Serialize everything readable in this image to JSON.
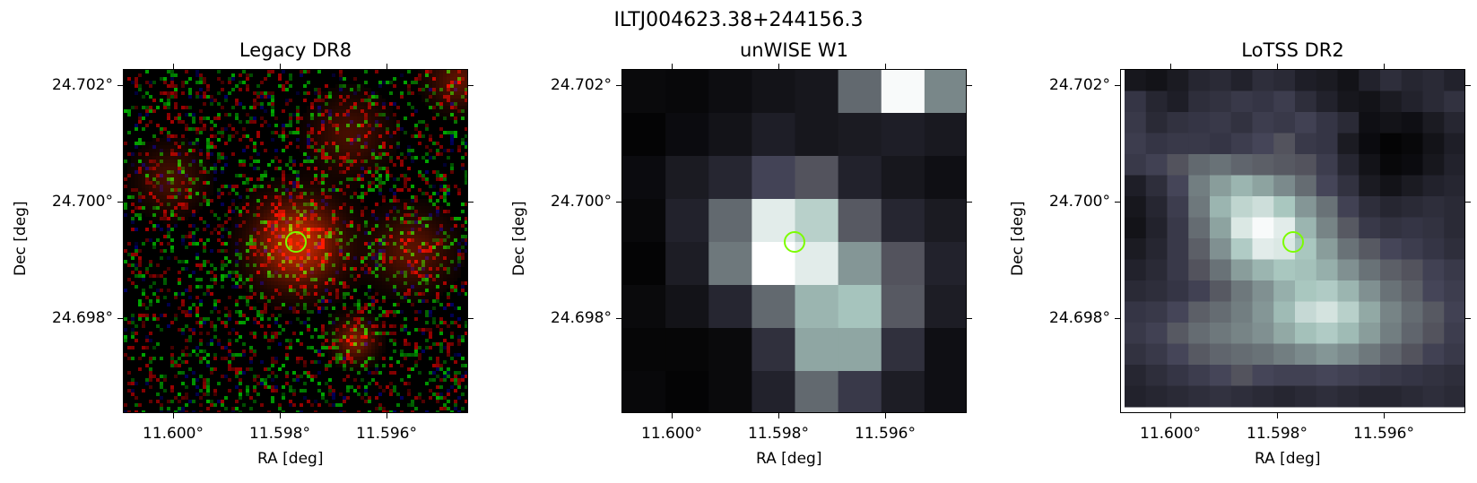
{
  "figure": {
    "title": "ILTJ004623.38+244156.3",
    "marker_color": "#7CFC00"
  },
  "panels": [
    {
      "title": "Legacy DR8",
      "xlabel": "RA [deg]",
      "ylabel": "Dec [deg]",
      "xticks": [
        "11.600°",
        "11.598°",
        "11.596°"
      ],
      "yticks": [
        "24.702°",
        "24.700°",
        "24.698°"
      ],
      "colormap": "rgb-composite"
    },
    {
      "title": "unWISE W1",
      "xlabel": "RA [deg]",
      "ylabel": "Dec [deg]",
      "xticks": [
        "11.600°",
        "11.598°",
        "11.596°"
      ],
      "yticks": [
        "24.702°",
        "24.700°",
        "24.698°"
      ],
      "colormap": "bone"
    },
    {
      "title": "LoTSS DR2",
      "xlabel": "RA [deg]",
      "ylabel": "Dec [deg]",
      "xticks": [
        "11.600°",
        "11.598°",
        "11.596°"
      ],
      "yticks": [
        "24.702°",
        "24.700°",
        "24.698°"
      ],
      "colormap": "bone"
    }
  ],
  "unwise_grid": [
    [
      0.05,
      0.04,
      0.07,
      0.1,
      0.12,
      0.45,
      0.98,
      0.55
    ],
    [
      0.02,
      0.06,
      0.1,
      0.16,
      0.12,
      0.14,
      0.16,
      0.13
    ],
    [
      0.06,
      0.14,
      0.2,
      0.35,
      0.38,
      0.18,
      0.12,
      0.08
    ],
    [
      0.04,
      0.18,
      0.45,
      0.92,
      0.8,
      0.4,
      0.2,
      0.14
    ],
    [
      0.02,
      0.15,
      0.5,
      1.0,
      0.92,
      0.6,
      0.38,
      0.18
    ],
    [
      0.05,
      0.1,
      0.2,
      0.45,
      0.7,
      0.75,
      0.4,
      0.15
    ],
    [
      0.03,
      0.03,
      0.05,
      0.25,
      0.65,
      0.65,
      0.25,
      0.08
    ],
    [
      0.04,
      0.02,
      0.05,
      0.18,
      0.45,
      0.3,
      0.15,
      0.08
    ]
  ],
  "lotss_grid": [
    [
      0.12,
      0.1,
      0.14,
      0.2,
      0.22,
      0.18,
      0.24,
      0.22,
      0.16,
      0.14,
      0.1,
      0.18,
      0.24,
      0.2,
      0.22,
      0.18
    ],
    [
      0.28,
      0.2,
      0.16,
      0.24,
      0.26,
      0.3,
      0.28,
      0.32,
      0.24,
      0.18,
      0.12,
      0.1,
      0.14,
      0.18,
      0.22,
      0.26
    ],
    [
      0.3,
      0.22,
      0.26,
      0.28,
      0.3,
      0.26,
      0.32,
      0.3,
      0.34,
      0.28,
      0.22,
      0.08,
      0.1,
      0.08,
      0.14,
      0.2
    ],
    [
      0.32,
      0.28,
      0.3,
      0.3,
      0.28,
      0.32,
      0.36,
      0.38,
      0.3,
      0.28,
      0.14,
      0.06,
      0.02,
      0.04,
      0.1,
      0.16
    ],
    [
      0.3,
      0.34,
      0.38,
      0.45,
      0.48,
      0.44,
      0.42,
      0.4,
      0.38,
      0.32,
      0.2,
      0.1,
      0.04,
      0.06,
      0.12,
      0.18
    ],
    [
      0.16,
      0.24,
      0.36,
      0.52,
      0.62,
      0.7,
      0.64,
      0.56,
      0.46,
      0.36,
      0.26,
      0.14,
      0.1,
      0.14,
      0.18,
      0.2
    ],
    [
      0.12,
      0.2,
      0.32,
      0.5,
      0.7,
      0.82,
      0.86,
      0.76,
      0.6,
      0.48,
      0.34,
      0.24,
      0.2,
      0.22,
      0.24,
      0.22
    ],
    [
      0.1,
      0.18,
      0.3,
      0.46,
      0.64,
      0.9,
      0.98,
      0.92,
      0.7,
      0.54,
      0.4,
      0.3,
      0.26,
      0.28,
      0.26,
      0.22
    ],
    [
      0.14,
      0.2,
      0.3,
      0.42,
      0.58,
      0.78,
      0.92,
      0.9,
      0.76,
      0.62,
      0.48,
      0.4,
      0.36,
      0.32,
      0.28,
      0.24
    ],
    [
      0.18,
      0.22,
      0.3,
      0.38,
      0.48,
      0.62,
      0.7,
      0.76,
      0.74,
      0.68,
      0.58,
      0.48,
      0.42,
      0.38,
      0.34,
      0.3
    ],
    [
      0.22,
      0.24,
      0.28,
      0.34,
      0.4,
      0.5,
      0.58,
      0.68,
      0.76,
      0.78,
      0.7,
      0.58,
      0.48,
      0.42,
      0.36,
      0.32
    ],
    [
      0.28,
      0.3,
      0.36,
      0.42,
      0.46,
      0.52,
      0.6,
      0.72,
      0.84,
      0.88,
      0.8,
      0.66,
      0.54,
      0.46,
      0.4,
      0.34
    ],
    [
      0.3,
      0.34,
      0.4,
      0.46,
      0.5,
      0.54,
      0.58,
      0.66,
      0.74,
      0.78,
      0.72,
      0.62,
      0.52,
      0.44,
      0.38,
      0.32
    ],
    [
      0.26,
      0.3,
      0.36,
      0.4,
      0.44,
      0.46,
      0.48,
      0.52,
      0.56,
      0.6,
      0.56,
      0.5,
      0.44,
      0.38,
      0.34,
      0.3
    ],
    [
      0.2,
      0.24,
      0.28,
      0.32,
      0.36,
      0.38,
      0.36,
      0.34,
      0.34,
      0.36,
      0.34,
      0.32,
      0.3,
      0.28,
      0.26,
      0.24
    ],
    [
      0.18,
      0.2,
      0.22,
      0.24,
      0.26,
      0.24,
      0.22,
      0.2,
      0.22,
      0.24,
      0.22,
      0.2,
      0.2,
      0.22,
      0.24,
      0.22
    ]
  ]
}
